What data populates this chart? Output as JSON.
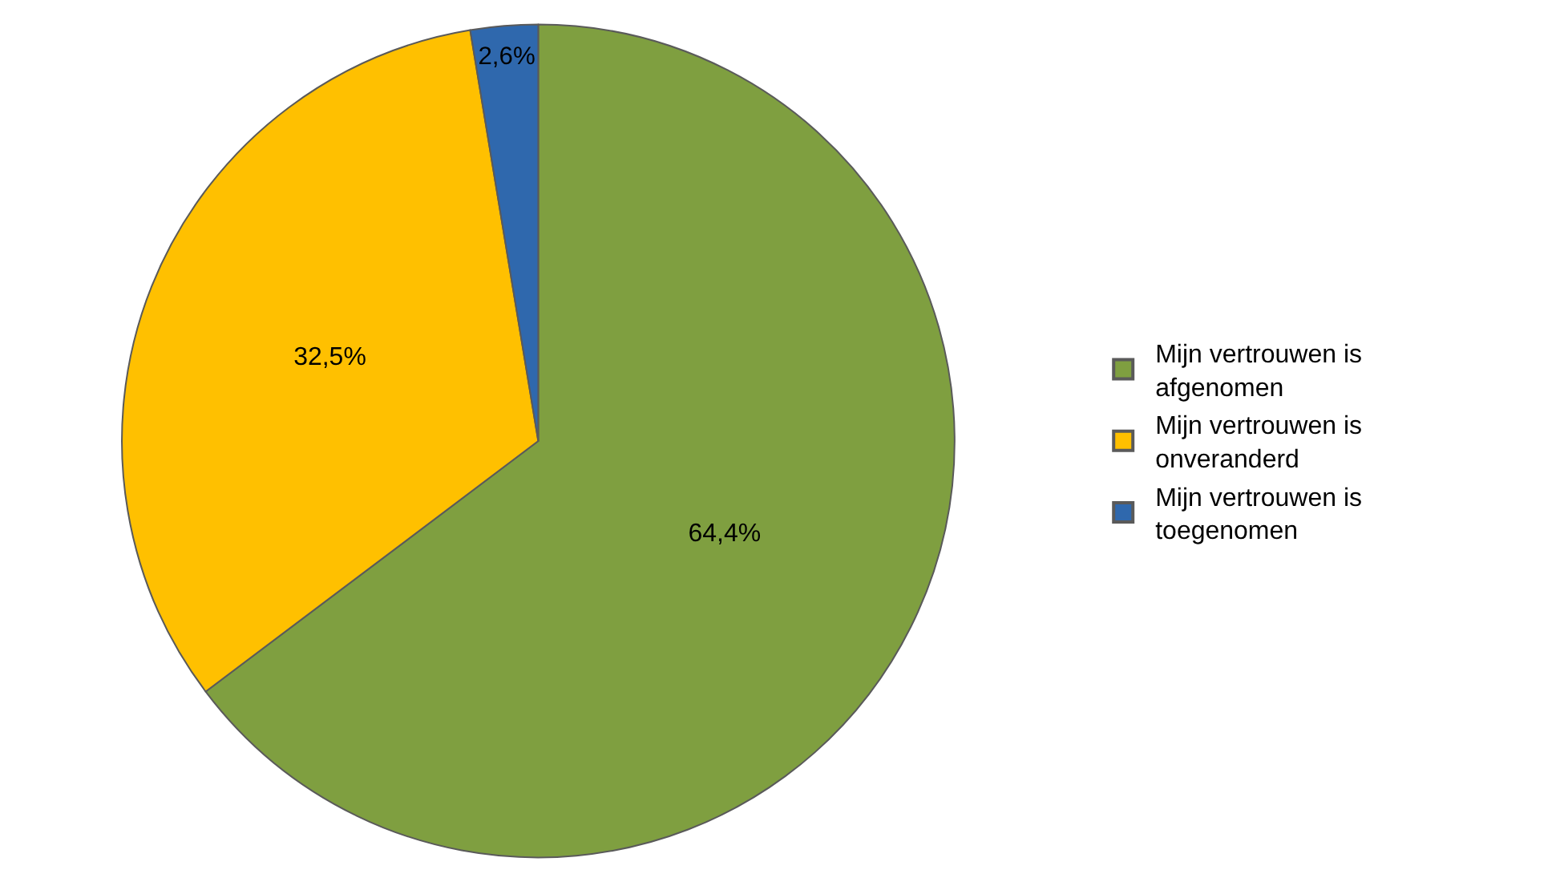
{
  "chart_data": {
    "type": "pie",
    "categories": [
      "Mijn vertrouwen is afgenomen",
      "Mijn vertrouwen is onveranderd",
      "Mijn vertrouwen is toegenomen"
    ],
    "values": [
      64.4,
      32.5,
      2.6
    ],
    "colors": [
      "#7f9f40",
      "#ffc000",
      "#2f68ad"
    ],
    "value_labels": [
      "64,4%",
      "32,5%",
      "2,6%"
    ],
    "legend": "right"
  }
}
